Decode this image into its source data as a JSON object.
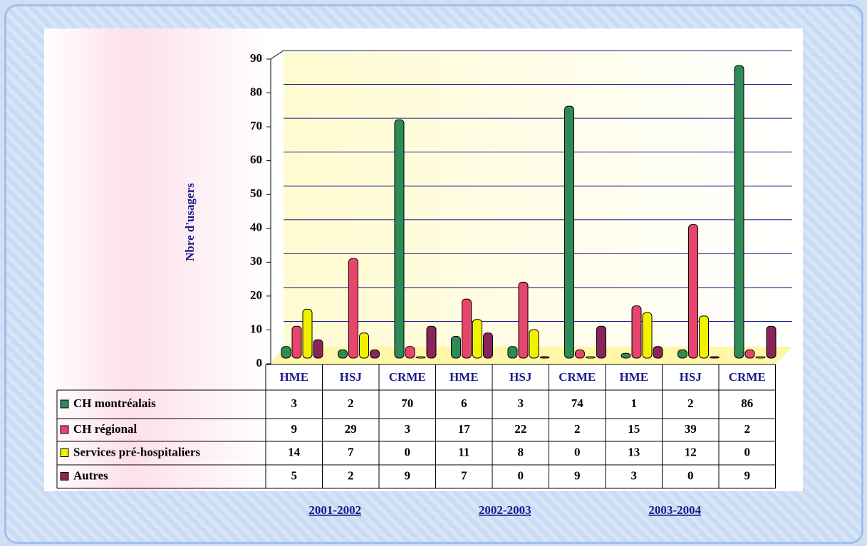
{
  "chart_data": {
    "type": "bar",
    "y_label": "Nbre d'usagers",
    "categories": [
      "HME",
      "HSJ",
      "CRME",
      "HME",
      "HSJ",
      "CRME",
      "HME",
      "HSJ",
      "CRME"
    ],
    "groups": [
      "2001-2002",
      "2002-2003",
      "2003-2004"
    ],
    "series": [
      {
        "name": "CH montréalais",
        "color": "#2e8b57",
        "values": [
          3,
          2,
          70,
          6,
          3,
          74,
          1,
          2,
          86
        ]
      },
      {
        "name": "CH régional",
        "color": "#e8456e",
        "values": [
          9,
          29,
          3,
          17,
          22,
          2,
          15,
          39,
          2
        ]
      },
      {
        "name": "Services pré-hospitaliers",
        "color": "#f2f200",
        "values": [
          14,
          7,
          0,
          11,
          8,
          0,
          13,
          12,
          0
        ]
      },
      {
        "name": "Autres",
        "color": "#8b2458",
        "values": [
          5,
          2,
          9,
          7,
          0,
          9,
          3,
          0,
          9
        ]
      }
    ],
    "ylim": [
      0,
      90
    ],
    "yticks": [
      0,
      10,
      20,
      30,
      40,
      50,
      60,
      70,
      80,
      90
    ],
    "grid": true
  }
}
